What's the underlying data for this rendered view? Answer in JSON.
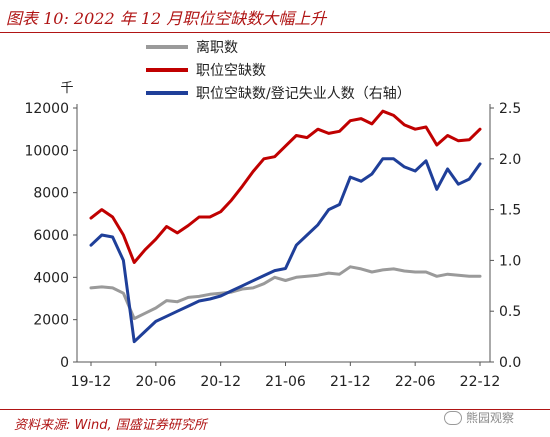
{
  "header": {
    "title": "图表 10:  2022 年 12 月职位空缺数大幅上升"
  },
  "footer": {
    "source": "资料来源:  Wind, 国盛证券研究所",
    "watermark": "熊园观察"
  },
  "chart_data": {
    "type": "line",
    "left_unit_label": "千",
    "x_ticks": [
      "19-12",
      "20-06",
      "20-12",
      "21-06",
      "21-12",
      "22-06",
      "22-12"
    ],
    "x_tick_months": [
      0,
      6,
      12,
      18,
      24,
      30,
      36
    ],
    "x": [
      "19-12",
      "20-01",
      "20-02",
      "20-03",
      "20-04",
      "20-05",
      "20-06",
      "20-07",
      "20-08",
      "20-09",
      "20-10",
      "20-11",
      "20-12",
      "21-01",
      "21-02",
      "21-03",
      "21-04",
      "21-05",
      "21-06",
      "21-07",
      "21-08",
      "21-09",
      "21-10",
      "21-11",
      "21-12",
      "22-01",
      "22-02",
      "22-03",
      "22-04",
      "22-05",
      "22-06",
      "22-07",
      "22-08",
      "22-09",
      "22-10",
      "22-11",
      "22-12"
    ],
    "ylim_left": [
      0,
      12000
    ],
    "yticks_left": [
      "0",
      "2000",
      "4000",
      "6000",
      "8000",
      "10000",
      "12000"
    ],
    "ylim_right": [
      0,
      2.5
    ],
    "yticks_right": [
      "0.0",
      "0.5",
      "1.0",
      "1.5",
      "2.0",
      "2.5"
    ],
    "series": [
      {
        "name": "离职数",
        "color": "#9a9a9a",
        "axis": "left",
        "values": [
          3500,
          3550,
          3500,
          3250,
          2050,
          2300,
          2550,
          2900,
          2850,
          3050,
          3100,
          3200,
          3250,
          3300,
          3450,
          3500,
          3700,
          4000,
          3850,
          4000,
          4050,
          4100,
          4200,
          4150,
          4500,
          4400,
          4250,
          4350,
          4400,
          4300,
          4250,
          4250,
          4050,
          4150,
          4100,
          4050,
          4050
        ]
      },
      {
        "name": "职位空缺数",
        "color": "#c00000",
        "axis": "left",
        "values": [
          6800,
          7200,
          6850,
          6000,
          4700,
          5300,
          5800,
          6400,
          6100,
          6450,
          6850,
          6850,
          7100,
          7650,
          8300,
          9000,
          9600,
          9700,
          10200,
          10700,
          10600,
          11000,
          10800,
          10900,
          11400,
          11500,
          11250,
          11850,
          11650,
          11200,
          11000,
          11100,
          10250,
          10700,
          10450,
          10500,
          11000
        ]
      },
      {
        "name": "职位空缺数/登记失业人数（右轴）",
        "color": "#1f3f99",
        "axis": "right",
        "values": [
          1.15,
          1.25,
          1.23,
          1.0,
          0.2,
          0.3,
          0.4,
          0.45,
          0.5,
          0.55,
          0.6,
          0.62,
          0.65,
          0.7,
          0.75,
          0.8,
          0.85,
          0.9,
          0.92,
          1.15,
          1.25,
          1.35,
          1.5,
          1.55,
          1.82,
          1.78,
          1.85,
          2.0,
          2.0,
          1.92,
          1.88,
          1.98,
          1.7,
          1.9,
          1.75,
          1.8,
          1.95
        ]
      }
    ],
    "grid": false,
    "legend_position": "top"
  }
}
